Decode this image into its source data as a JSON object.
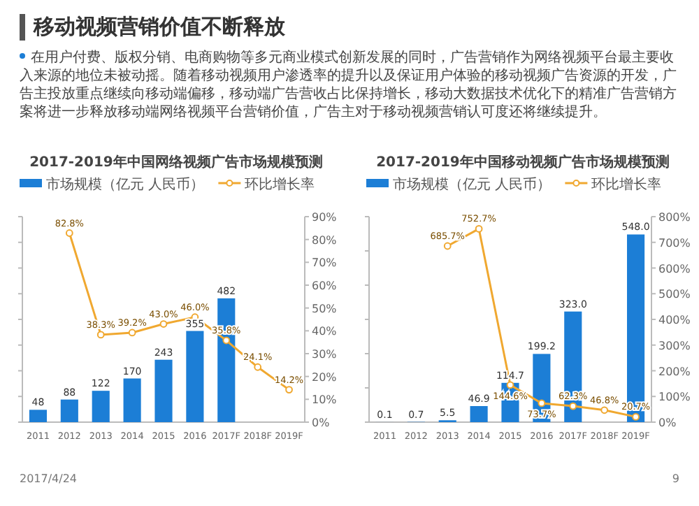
{
  "chart_data": [
    {
      "type": "other",
      "title": "移动视频营销价值不断释放",
      "annotations": [
        "在用户付费、版权分销、电商购物等多元商业模式创新发展的同时，广告营销作为网络视频平台最主要收入来源的地位未被动摇。随着移动视频用户渗透率的提升以及保证用户体验的移动视频广告资源的开发，广告主投放重点继续向移动端偏移，移动端广告营收占比保持增长，移动大数据技术优化下的精准广告营销方案将进一步释放移动端网络视频平台营销价值，广告主对于移动视频营销认可度还将继续提升。",
        "2017/4/24",
        "9"
      ]
    },
    {
      "type": "bar",
      "title": "2017-2019年中国网络视频广告市场规模预测",
      "categories": [
        "2011",
        "2012",
        "2013",
        "2014",
        "2015",
        "2016",
        "2017F",
        "2018F",
        "2019F"
      ],
      "legend": "top",
      "marker": "circle",
      "ylim": [
        0,
        800
      ],
      "yticks": [
        {
          "value": 0,
          "label": null
        },
        {
          "value": 100,
          "label": null
        },
        {
          "value": 200,
          "label": null
        },
        {
          "value": 300,
          "label": null
        },
        {
          "value": 400,
          "label": null
        },
        {
          "value": 500,
          "label": null
        },
        {
          "value": 600,
          "label": null
        },
        {
          "value": 700,
          "label": null
        },
        {
          "value": 800,
          "label": null
        }
      ],
      "y2lim": [
        0,
        90
      ],
      "y2ticks": [
        {
          "value": 0,
          "label": "0%"
        },
        {
          "value": 10,
          "label": "10%"
        },
        {
          "value": 20,
          "label": "20%"
        },
        {
          "value": 30,
          "label": "30%"
        },
        {
          "value": 40,
          "label": "40%"
        },
        {
          "value": 50,
          "label": "50%"
        },
        {
          "value": 60,
          "label": "60%"
        },
        {
          "value": 70,
          "label": "70%"
        },
        {
          "value": 80,
          "label": "80%"
        },
        {
          "value": 90,
          "label": "90%"
        }
      ],
      "series": [
        {
          "name": "市场规模（亿元 人民币）",
          "type": "bar",
          "color": "#1c7ed6",
          "values": [
            48,
            88,
            122,
            170,
            243,
            355,
            482,
            null,
            null
          ],
          "value_labels": [
            "48",
            "88",
            "122",
            "170",
            "243",
            "355",
            "482",
            null,
            null
          ]
        },
        {
          "name": "环比增长率",
          "type": "line",
          "axis": "y2",
          "color": "#f0a830",
          "values": [
            null,
            82.8,
            38.3,
            39.2,
            43.0,
            46.0,
            35.8,
            24.1,
            14.2
          ],
          "value_labels": [
            null,
            "82.8%",
            "38.3%",
            "39.2%",
            "43.0%",
            "46.0%",
            "35.8%",
            "24.1%",
            "14.2%"
          ]
        }
      ]
    },
    {
      "type": "bar",
      "title": "2017-2019年中国移动视频广告市场规模预测",
      "categories": [
        "2011",
        "2012",
        "2013",
        "2014",
        "2015",
        "2016",
        "2017F",
        "2018F",
        "2019F"
      ],
      "legend": "top",
      "marker": "circle",
      "ylim": [
        0,
        600
      ],
      "yticks": [
        {
          "value": 0,
          "label": null
        },
        {
          "value": 100,
          "label": null
        },
        {
          "value": 200,
          "label": null
        },
        {
          "value": 300,
          "label": null
        },
        {
          "value": 400,
          "label": null
        },
        {
          "value": 500,
          "label": null
        },
        {
          "value": 600,
          "label": null
        }
      ],
      "y2lim": [
        0,
        800
      ],
      "y2ticks": [
        {
          "value": 0,
          "label": "0%"
        },
        {
          "value": 100,
          "label": "100%"
        },
        {
          "value": 200,
          "label": "200%"
        },
        {
          "value": 300,
          "label": "300%"
        },
        {
          "value": 400,
          "label": "400%"
        },
        {
          "value": 500,
          "label": "500%"
        },
        {
          "value": 600,
          "label": "600%"
        },
        {
          "value": 700,
          "label": "700%"
        },
        {
          "value": 800,
          "label": "800%"
        }
      ],
      "series": [
        {
          "name": "市场规模（亿元 人民币）",
          "type": "bar",
          "color": "#1c7ed6",
          "values": [
            0.1,
            0.7,
            5.5,
            46.9,
            114.7,
            199.2,
            323.0,
            null,
            548.0
          ],
          "value_labels": [
            "0.1",
            "0.7",
            "5.5",
            "46.9",
            "114.7",
            "199.2",
            "323.0",
            null,
            "548.0"
          ]
        },
        {
          "name": "环比增长率",
          "type": "line",
          "axis": "y2",
          "color": "#f0a830",
          "values": [
            null,
            null,
            685.7,
            752.7,
            144.6,
            73.7,
            62.3,
            46.8,
            20.7
          ],
          "value_labels": [
            null,
            null,
            "685.7%",
            "752.7%",
            "144.6%",
            "73.7%",
            "62.3%",
            "46.8%",
            "20.7%"
          ]
        }
      ]
    }
  ]
}
